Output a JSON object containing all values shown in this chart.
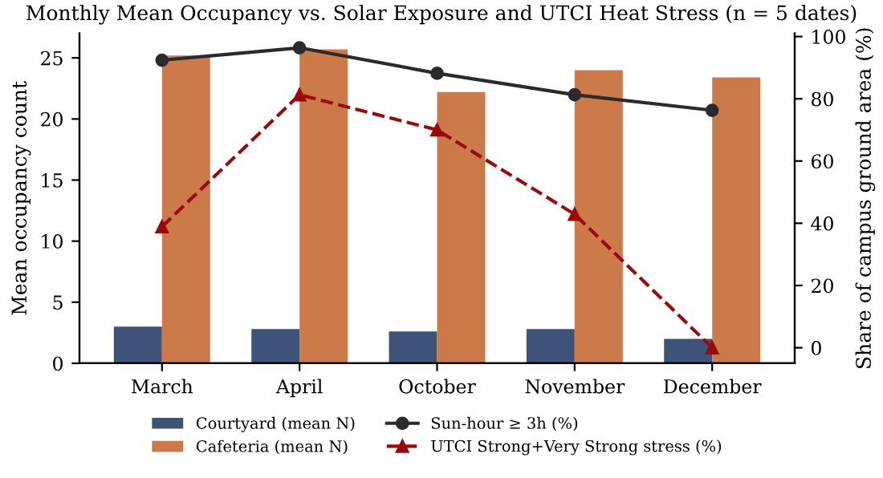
{
  "chart_data": {
    "type": "bar",
    "title": "Monthly Mean Occupancy vs. Solar Exposure and UTCI Heat Stress (n = 5 dates)",
    "categories": [
      "March",
      "April",
      "October",
      "November",
      "December"
    ],
    "ylabel": "Mean occupancy count",
    "y2label": "Share of campus ground area (%)",
    "ylim": [
      0,
      27
    ],
    "yticks": [
      0,
      5,
      10,
      15,
      20,
      25
    ],
    "y2lim": [
      -5,
      101
    ],
    "y2ticks": [
      0,
      20,
      40,
      60,
      80,
      100
    ],
    "series": [
      {
        "name": "Courtyard (mean N)",
        "color": "#3f5378",
        "values": [
          3.0,
          2.8,
          2.6,
          2.8,
          2.0
        ]
      },
      {
        "name": "Cafeteria (mean N)",
        "color": "#cc7a4a",
        "values": [
          25.2,
          25.7,
          22.2,
          24.0,
          23.4
        ]
      },
      {
        "name": "Sun-hour ≥ 3h (%)",
        "type": "line",
        "axis": "y2",
        "color": "#2b2b2b",
        "marker": "circle",
        "line_style": "solid",
        "values": [
          92.4,
          96.4,
          88.2,
          81.3,
          76.3
        ]
      },
      {
        "name": "UTCI Strong+Very Strong stress (%)",
        "type": "line",
        "axis": "y2",
        "color": "#9b0a0a",
        "marker": "triangle",
        "line_style": "dashed",
        "values": [
          38.9,
          81.3,
          70.0,
          42.9,
          0.0
        ]
      }
    ],
    "grid": false,
    "legend": "bottom"
  }
}
